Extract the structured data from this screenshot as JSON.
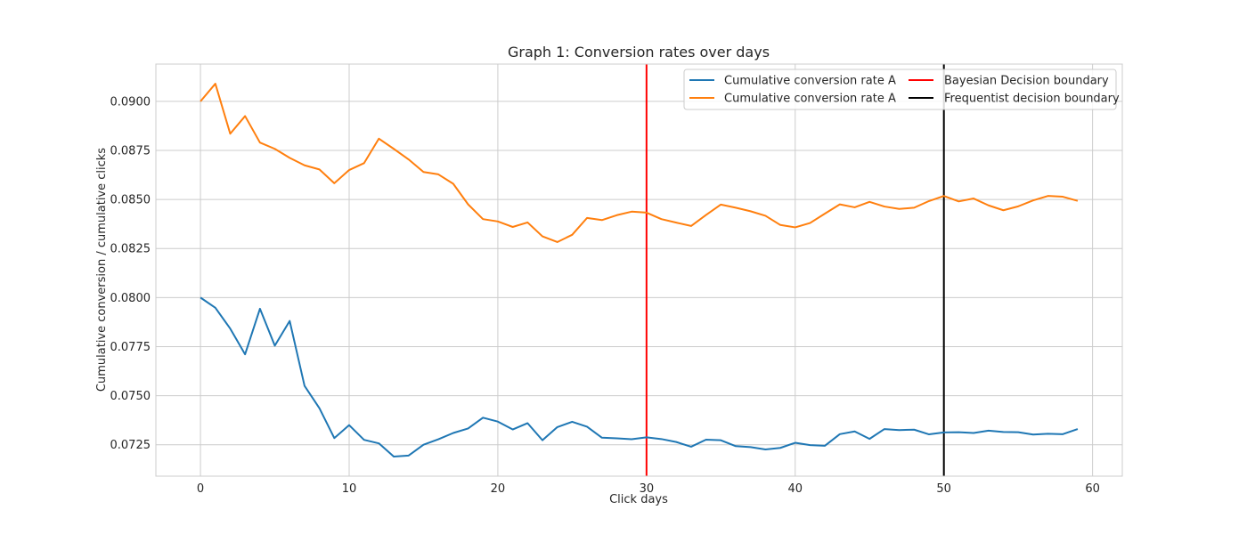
{
  "chart_data": {
    "type": "line",
    "title": "Graph 1: Conversion rates over days",
    "xlabel": "Click days",
    "ylabel": "Cumulative conversion / cumulative clicks",
    "xlim": [
      -3,
      62
    ],
    "ylim": [
      0.0709,
      0.0919
    ],
    "xticks": [
      0,
      10,
      20,
      30,
      40,
      50,
      60
    ],
    "yticks": [
      0.0725,
      0.075,
      0.0775,
      0.08,
      0.0825,
      0.085,
      0.0875,
      0.09
    ],
    "grid": true,
    "legend_position": "top-right",
    "x": [
      0,
      1,
      2,
      3,
      4,
      5,
      6,
      7,
      8,
      9,
      10,
      11,
      12,
      13,
      14,
      15,
      16,
      17,
      18,
      19,
      20,
      21,
      22,
      23,
      24,
      25,
      26,
      27,
      28,
      29,
      30,
      31,
      32,
      33,
      34,
      35,
      36,
      37,
      38,
      39,
      40,
      41,
      42,
      43,
      44,
      45,
      46,
      47,
      48,
      49,
      50,
      51,
      52,
      53,
      54,
      55,
      56,
      57,
      58,
      59
    ],
    "series": [
      {
        "name": "Cumulative conversion rate A",
        "color": "#1f77b4",
        "values": [
          0.08,
          0.07948,
          0.07842,
          0.07711,
          0.07943,
          0.07755,
          0.07881,
          0.0755,
          0.07436,
          0.07284,
          0.0735,
          0.07275,
          0.07257,
          0.0719,
          0.07195,
          0.0725,
          0.07278,
          0.0731,
          0.07333,
          0.07388,
          0.07368,
          0.07328,
          0.0736,
          0.07273,
          0.0734,
          0.07367,
          0.07342,
          0.07286,
          0.07283,
          0.07278,
          0.07288,
          0.07279,
          0.07264,
          0.0724,
          0.07276,
          0.07273,
          0.07243,
          0.07238,
          0.07226,
          0.07234,
          0.0726,
          0.07248,
          0.07245,
          0.07304,
          0.07318,
          0.0728,
          0.0733,
          0.07325,
          0.07327,
          0.07303,
          0.07313,
          0.07314,
          0.0731,
          0.07322,
          0.07315,
          0.07314,
          0.07302,
          0.07306,
          0.07304,
          0.0733
        ]
      },
      {
        "name": "Cumulative conversion rate A",
        "color": "#ff7f0e",
        "values": [
          0.09,
          0.0909,
          0.08835,
          0.08925,
          0.0879,
          0.08758,
          0.08712,
          0.08674,
          0.08653,
          0.08583,
          0.0865,
          0.08685,
          0.0881,
          0.08758,
          0.08704,
          0.0864,
          0.08628,
          0.0858,
          0.08475,
          0.084,
          0.08388,
          0.0836,
          0.08383,
          0.08312,
          0.08283,
          0.0832,
          0.08406,
          0.08395,
          0.0842,
          0.08438,
          0.08433,
          0.084,
          0.08382,
          0.08365,
          0.08421,
          0.08474,
          0.08458,
          0.0844,
          0.08417,
          0.0837,
          0.08358,
          0.0838,
          0.08428,
          0.08475,
          0.0846,
          0.08488,
          0.08464,
          0.08452,
          0.08458,
          0.08492,
          0.08518,
          0.0849,
          0.08505,
          0.0847,
          0.08445,
          0.08465,
          0.08495,
          0.08518,
          0.08514,
          0.08493
        ]
      }
    ],
    "vlines": [
      {
        "name": "Bayesian Decision boundary",
        "x": 30,
        "color": "#ff0000"
      },
      {
        "name": "Frequentist decision boundary",
        "x": 50,
        "color": "#000000"
      }
    ]
  }
}
